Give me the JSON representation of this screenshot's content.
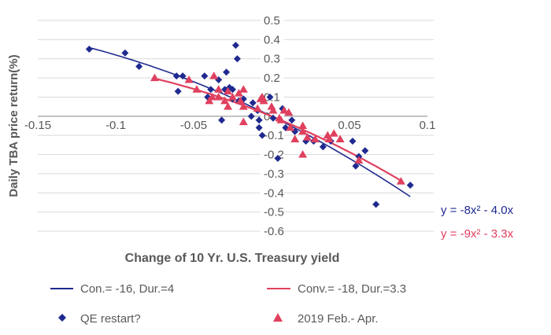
{
  "chart_data": {
    "type": "scatter",
    "title": "",
    "xlabel": "Change of 10 Yr. U.S. Treasury yield",
    "ylabel": "Daily TBA price return(%)",
    "xlim": [
      -0.15,
      0.1
    ],
    "ylim": [
      -0.6,
      0.5
    ],
    "x_ticks": [
      "-0.15",
      "-0.1",
      "-0.05",
      "0.05",
      "0.1"
    ],
    "x_tick_values": [
      -0.15,
      -0.1,
      -0.05,
      0.05,
      0.1
    ],
    "y_ticks": [
      "0.5",
      "0.4",
      "0.3",
      "0.2",
      "0.1",
      "0",
      "-0.1",
      "-0.2",
      "-0.3",
      "-0.4",
      "-0.5",
      "-0.6"
    ],
    "y_tick_values": [
      0.5,
      0.4,
      0.3,
      0.2,
      0.1,
      0,
      -0.1,
      -0.2,
      -0.3,
      -0.4,
      -0.5,
      -0.6
    ],
    "grid": "horizontal",
    "legend_position": "bottom",
    "series": [
      {
        "name": "QE restart?",
        "marker": "diamond",
        "color": "#1f2a8f",
        "points": [
          [
            -0.117,
            0.35
          ],
          [
            -0.094,
            0.33
          ],
          [
            -0.085,
            0.26
          ],
          [
            -0.061,
            0.21
          ],
          [
            -0.057,
            0.21
          ],
          [
            -0.06,
            0.13
          ],
          [
            -0.043,
            0.21
          ],
          [
            -0.034,
            0.19
          ],
          [
            -0.029,
            0.23
          ],
          [
            -0.023,
            0.37
          ],
          [
            -0.022,
            0.3
          ],
          [
            -0.041,
            0.1
          ],
          [
            -0.039,
            0.14
          ],
          [
            -0.03,
            0.14
          ],
          [
            -0.027,
            0.15
          ],
          [
            -0.032,
            -0.02
          ],
          [
            -0.025,
            0.09
          ],
          [
            -0.021,
            0.08
          ],
          [
            -0.018,
            0.09
          ],
          [
            -0.013,
            0.0
          ],
          [
            -0.009,
            0.03
          ],
          [
            -0.025,
            0.14
          ],
          [
            -0.012,
            0.07
          ],
          [
            -0.008,
            -0.02
          ],
          [
            -0.008,
            -0.06
          ],
          [
            -0.006,
            -0.1
          ],
          [
            -0.001,
            0.1
          ],
          [
            0.001,
            -0.01
          ],
          [
            0.004,
            -0.22
          ],
          [
            0.007,
            0.04
          ],
          [
            0.009,
            -0.06
          ],
          [
            0.013,
            -0.02
          ],
          [
            0.015,
            -0.08
          ],
          [
            0.022,
            -0.13
          ],
          [
            0.027,
            -0.13
          ],
          [
            0.033,
            -0.16
          ],
          [
            0.038,
            -0.13
          ],
          [
            0.052,
            -0.13
          ],
          [
            0.054,
            -0.26
          ],
          [
            0.056,
            -0.21
          ],
          [
            0.06,
            -0.18
          ],
          [
            0.067,
            -0.46
          ],
          [
            0.089,
            -0.36
          ]
        ]
      },
      {
        "name": "2019 Feb.- Apr.",
        "marker": "triangle",
        "color": "#e0405e",
        "points": [
          [
            -0.075,
            0.2
          ],
          [
            -0.053,
            0.19
          ],
          [
            -0.048,
            0.14
          ],
          [
            -0.04,
            0.08
          ],
          [
            -0.038,
            0.1
          ],
          [
            -0.037,
            0.21
          ],
          [
            -0.034,
            0.14
          ],
          [
            -0.034,
            0.1
          ],
          [
            -0.03,
            0.08
          ],
          [
            -0.028,
            0.05
          ],
          [
            -0.028,
            0.13
          ],
          [
            -0.025,
            0.1
          ],
          [
            -0.021,
            0.12
          ],
          [
            -0.02,
            0.08
          ],
          [
            -0.018,
            0.14
          ],
          [
            -0.018,
            0.05
          ],
          [
            -0.018,
            -0.03
          ],
          [
            -0.007,
            0.09
          ],
          [
            -0.009,
            0.04
          ],
          [
            -0.006,
            0.1
          ],
          [
            -0.005,
            0.08
          ],
          [
            0.0,
            0.05
          ],
          [
            0.001,
            0.03
          ],
          [
            0.005,
            -0.01
          ],
          [
            0.006,
            -0.02
          ],
          [
            0.008,
            0.03
          ],
          [
            0.011,
            0.02
          ],
          [
            0.012,
            -0.06
          ],
          [
            0.015,
            -0.12
          ],
          [
            0.02,
            -0.05
          ],
          [
            0.02,
            -0.08
          ],
          [
            0.02,
            -0.2
          ],
          [
            0.023,
            -0.11
          ],
          [
            0.028,
            -0.12
          ],
          [
            0.036,
            -0.1
          ],
          [
            0.037,
            -0.12
          ],
          [
            0.04,
            -0.09
          ],
          [
            0.044,
            -0.12
          ],
          [
            0.056,
            -0.23
          ],
          [
            0.083,
            -0.34
          ]
        ]
      }
    ],
    "trendlines": [
      {
        "name": "Con.= -16, Dur.=4",
        "equation": "y = -8x² - 4.0x",
        "a": -8,
        "b": -4.0,
        "x_range": [
          -0.117,
          0.089
        ],
        "color": "#1f2a8f"
      },
      {
        "name": "Conv.= -18, Dur.=3.3",
        "equation": "y = -9x² - 3.3x",
        "a": -9,
        "b": -3.3,
        "x_range": [
          -0.075,
          0.083
        ],
        "color": "#e0405e"
      }
    ]
  }
}
